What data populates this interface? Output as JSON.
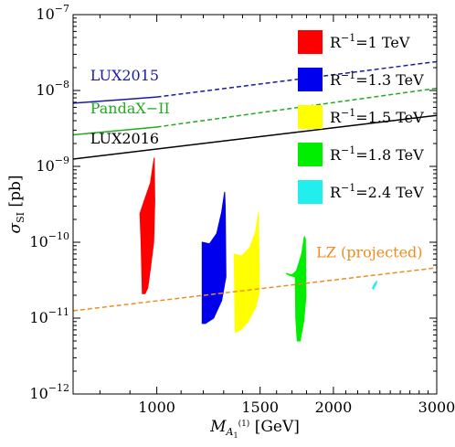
{
  "chart_data": {
    "type": "scatter",
    "x_scale": "log",
    "y_scale": "log",
    "xlim": [
      720,
      3000
    ],
    "ylim": [
      1e-12,
      1e-07
    ],
    "xlabel": {
      "main": "M",
      "sub": "A",
      "subsub": "1",
      "sup": "(1)",
      "unit": " [GeV]"
    },
    "ylabel": {
      "main": "σ",
      "sub": "SI",
      "unit": " [pb]"
    },
    "x_ticks": [
      {
        "value": 1000,
        "label": "1000"
      },
      {
        "value": 1500,
        "label": "1500"
      },
      {
        "value": 2000,
        "label": "2000"
      },
      {
        "value": 3000,
        "label": "3000"
      }
    ],
    "y_ticks": [
      {
        "value": 1e-12,
        "base": "10",
        "exp": "−12"
      },
      {
        "value": 1e-11,
        "base": "10",
        "exp": "−11"
      },
      {
        "value": 1e-10,
        "base": "10",
        "exp": "−10"
      },
      {
        "value": 1e-09,
        "base": "10",
        "exp": "−9"
      },
      {
        "value": 1e-08,
        "base": "10",
        "exp": "−8"
      },
      {
        "value": 1e-07,
        "base": "10",
        "exp": "−7"
      }
    ],
    "limits": [
      {
        "name": "LUX2015",
        "color": "#1a1aa6",
        "solid": [
          [
            720,
            6.8e-09
          ],
          [
            1000,
            8.2e-09
          ]
        ],
        "dashed": [
          [
            1000,
            8.2e-09
          ],
          [
            3000,
            2.4e-08
          ]
        ],
        "label_at": [
          770,
          1.35e-08
        ]
      },
      {
        "name": "PandaX−II",
        "color": "#22aa22",
        "solid": [
          [
            720,
            2.6e-09
          ],
          [
            1000,
            3.3e-09
          ]
        ],
        "dashed": [
          [
            1000,
            3.3e-09
          ],
          [
            3000,
            1.07e-08
          ]
        ],
        "label_at": [
          770,
          5e-09
        ]
      },
      {
        "name": "LUX2016",
        "color": "#000000",
        "solid": [
          [
            720,
            1.25e-09
          ],
          [
            3000,
            4.7e-09
          ]
        ],
        "dashed": [],
        "label_at": [
          770,
          2e-09
        ]
      },
      {
        "name": "LZ (projected)",
        "color": "#f08c1e",
        "solid": [],
        "dashed": [
          [
            720,
            1.25e-11
          ],
          [
            3000,
            4.6e-11
          ]
        ],
        "label_at": [
          1870,
          6.3e-11
        ]
      }
    ],
    "regions": [
      {
        "name": "R⁻¹=1 TeV",
        "color": "#ff0000",
        "polygon": [
          [
            945,
            2.1e-11
          ],
          [
            940,
            1e-10
          ],
          [
            936,
            2.4e-10
          ],
          [
            955,
            3.8e-10
          ],
          [
            975,
            6e-10
          ],
          [
            990,
            1.3e-09
          ],
          [
            992,
            3.5e-10
          ],
          [
            988,
            1e-10
          ],
          [
            975,
            4.5e-11
          ],
          [
            965,
            2.5e-11
          ],
          [
            955,
            2.1e-11
          ]
        ]
      },
      {
        "name": "R⁻¹=1.3 TeV",
        "color": "#0000ee",
        "polygon": [
          [
            1195,
            8.5e-12
          ],
          [
            1195,
            1e-10
          ],
          [
            1230,
            9.5e-11
          ],
          [
            1265,
            1.3e-10
          ],
          [
            1290,
            2.5e-10
          ],
          [
            1305,
            4.6e-10
          ],
          [
            1308,
            3e-10
          ],
          [
            1312,
            3.5e-11
          ],
          [
            1290,
            1.7e-11
          ],
          [
            1250,
            1e-11
          ],
          [
            1210,
            8.5e-12
          ]
        ]
      },
      {
        "name": "R⁻¹=1.5 TeV",
        "color": "#ffff00",
        "polygon": [
          [
            1360,
            6.5e-12
          ],
          [
            1355,
            7e-11
          ],
          [
            1395,
            6.6e-11
          ],
          [
            1440,
            8.5e-11
          ],
          [
            1475,
            1.4e-10
          ],
          [
            1490,
            2.5e-10
          ],
          [
            1496,
            2.2e-11
          ],
          [
            1475,
            1.4e-11
          ],
          [
            1430,
            9e-12
          ],
          [
            1390,
            7e-12
          ]
        ]
      },
      {
        "name": "R⁻¹=1.8 TeV",
        "color": "#00ee00",
        "polygon": [
          [
            1660,
            3.9e-11
          ],
          [
            1700,
            3.7e-11
          ],
          [
            1730,
            4.2e-11
          ],
          [
            1765,
            7e-11
          ],
          [
            1785,
            1.2e-10
          ],
          [
            1792,
            1.1e-10
          ],
          [
            1795,
            1.9e-11
          ],
          [
            1780,
            9e-12
          ],
          [
            1755,
            5e-12
          ],
          [
            1735,
            5e-12
          ],
          [
            1725,
            1e-11
          ],
          [
            1722,
            3.5e-11
          ],
          [
            1690,
            3.6e-11
          ]
        ]
      },
      {
        "name": "R⁻¹=2.4 TeV",
        "color": "#22eeee",
        "polygon": [
          [
            2330,
            2.5e-11
          ],
          [
            2355,
            2.9e-11
          ],
          [
            2372,
            3.1e-11
          ],
          [
            2365,
            2.8e-11
          ],
          [
            2340,
            2.4e-11
          ]
        ]
      }
    ],
    "legend": {
      "placement": "top-right",
      "entries": [
        {
          "base": "R",
          "sup": "−1",
          "rest": "=1 TeV",
          "color": "#ff0000"
        },
        {
          "base": "R",
          "sup": "−1",
          "rest": "=1.3 TeV",
          "color": "#0000ee"
        },
        {
          "base": "R",
          "sup": "−1",
          "rest": "=1.5 TeV",
          "color": "#ffff00"
        },
        {
          "base": "R",
          "sup": "−1",
          "rest": "=1.8 TeV",
          "color": "#00ee00"
        },
        {
          "base": "R",
          "sup": "−1",
          "rest": "=2.4 TeV",
          "color": "#22eeee"
        }
      ]
    }
  }
}
